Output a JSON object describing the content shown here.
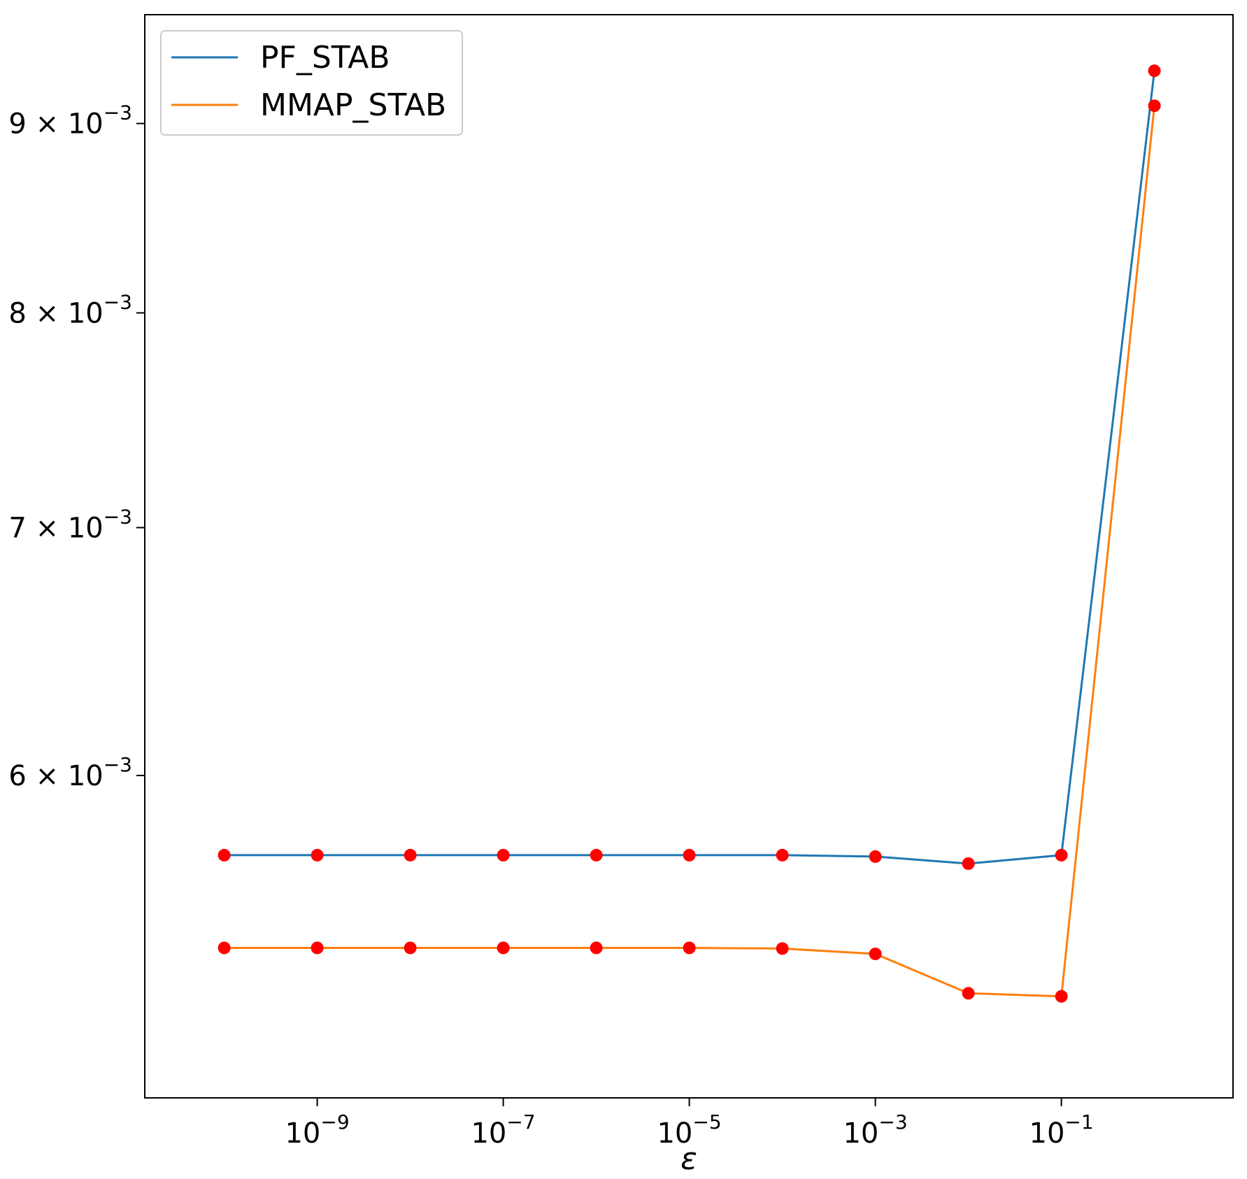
{
  "chart_data": {
    "type": "line",
    "title": "",
    "xlabel": "ε",
    "ylabel": "",
    "xscale": "log",
    "yscale": "log",
    "x": [
      1e-10,
      1e-09,
      1e-08,
      1e-07,
      1e-06,
      1e-05,
      0.0001,
      0.001,
      0.01,
      0.1,
      1
    ],
    "xlim": [
      1.4e-11,
      7.0
    ],
    "ylim": [
      0.00491,
      0.00963
    ],
    "x_ticks": [
      {
        "value": 1e-09,
        "base": "10",
        "exp": "−9"
      },
      {
        "value": 1e-07,
        "base": "10",
        "exp": "−7"
      },
      {
        "value": 1e-05,
        "base": "10",
        "exp": "−5"
      },
      {
        "value": 0.001,
        "base": "10",
        "exp": "−3"
      },
      {
        "value": 0.1,
        "base": "10",
        "exp": "−1"
      }
    ],
    "y_ticks": [
      {
        "value": 0.006,
        "mant": "6",
        "times": "×",
        "base": "10",
        "exp": "−3"
      },
      {
        "value": 0.007,
        "mant": "7",
        "times": "×",
        "base": "10",
        "exp": "−3"
      },
      {
        "value": 0.008,
        "mant": "8",
        "times": "×",
        "base": "10",
        "exp": "−3"
      },
      {
        "value": 0.009,
        "mant": "9",
        "times": "×",
        "base": "10",
        "exp": "−3"
      }
    ],
    "series": [
      {
        "name": "PF_STAB",
        "color": "#1f77b4",
        "values": [
          0.00571,
          0.00571,
          0.00571,
          0.00571,
          0.00571,
          0.00571,
          0.00571,
          0.005705,
          0.00568,
          0.00571,
          0.0093
        ]
      },
      {
        "name": "MMAP_STAB",
        "color": "#ff7f0e",
        "values": [
          0.00539,
          0.00539,
          0.00539,
          0.00539,
          0.00539,
          0.00539,
          0.005388,
          0.00537,
          0.00524,
          0.00523,
          0.0091
        ]
      }
    ],
    "marker_color": "#ff0000",
    "grid": false,
    "legend": "top-left"
  }
}
